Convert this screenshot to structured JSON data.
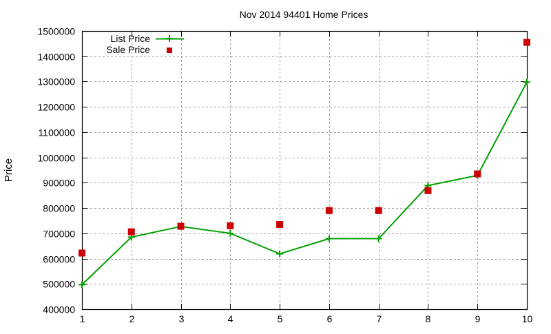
{
  "chart_data": {
    "type": "line",
    "title": "Nov 2014 94401 Home Prices",
    "xlabel": "",
    "ylabel": "Price",
    "x": [
      1,
      2,
      3,
      4,
      5,
      6,
      7,
      8,
      9,
      10
    ],
    "xlim": [
      1,
      10
    ],
    "ylim": [
      400000,
      1500000
    ],
    "x_ticks": [
      "1",
      "2",
      "3",
      "4",
      "5",
      "6",
      "7",
      "8",
      "9",
      "10"
    ],
    "y_ticks": [
      "400000",
      "500000",
      "600000",
      "700000",
      "800000",
      "900000",
      "1000000",
      "1100000",
      "1200000",
      "1300000",
      "1400000",
      "1500000"
    ],
    "grid": true,
    "legend_position": "top-left",
    "series": [
      {
        "name": "List Price",
        "style": "linespoints",
        "marker": "plus",
        "color": "#00a000",
        "values": [
          497000,
          685000,
          727000,
          700000,
          619000,
          679000,
          679000,
          889000,
          929000,
          1298000
        ]
      },
      {
        "name": "Sale Price",
        "style": "points",
        "marker": "square",
        "color": "#cc0000",
        "values": [
          622000,
          706000,
          728000,
          730000,
          735000,
          790000,
          790000,
          869000,
          935000,
          1455000
        ]
      }
    ]
  }
}
